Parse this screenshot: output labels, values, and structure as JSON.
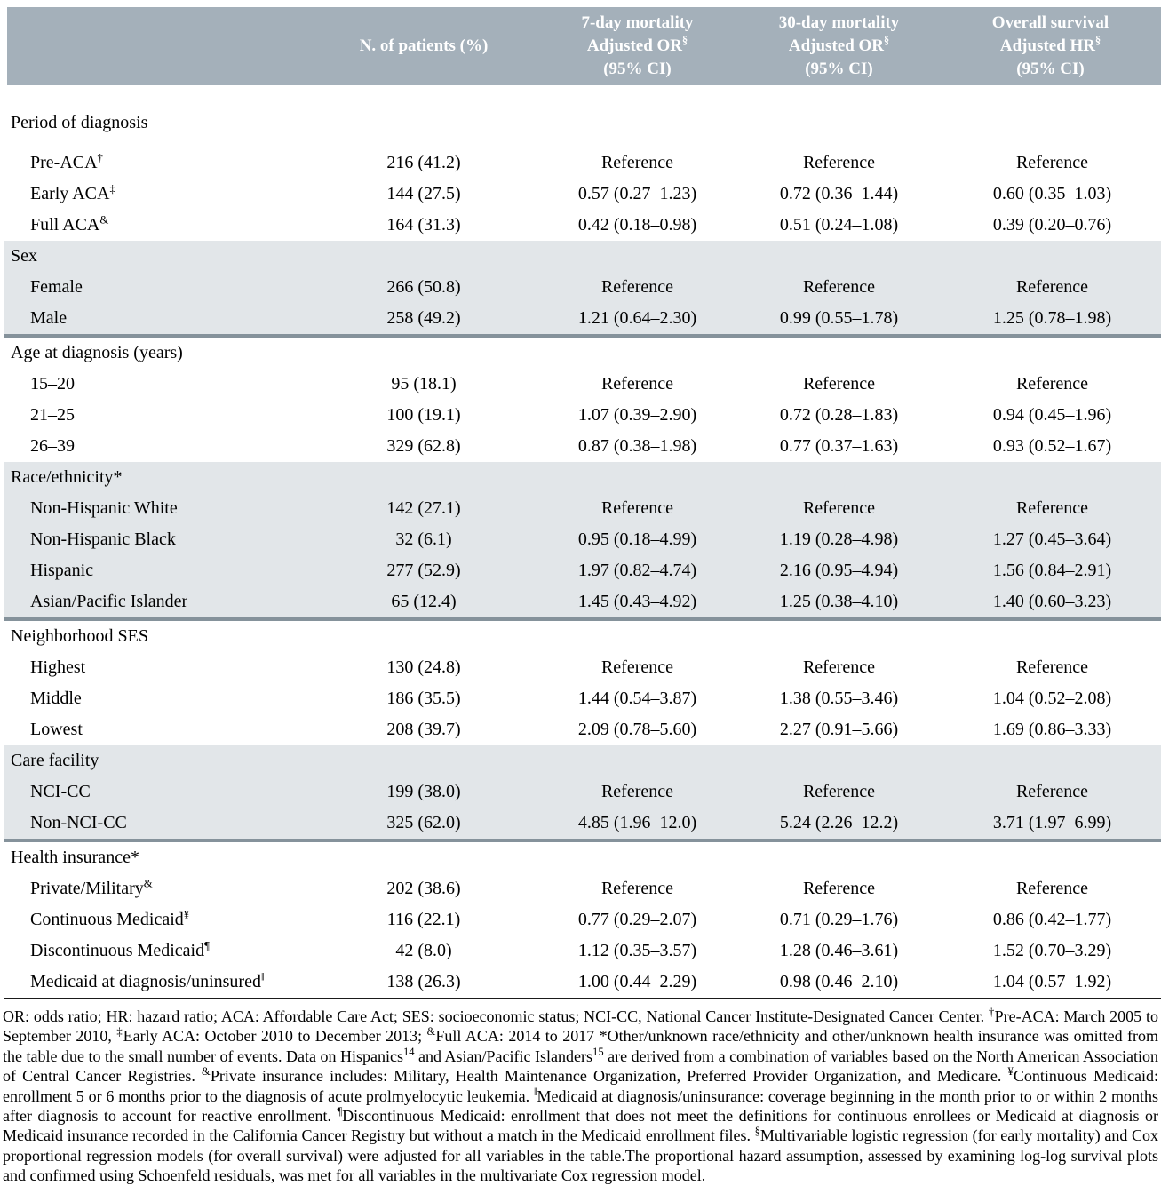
{
  "table": {
    "columns": [
      {
        "label": ""
      },
      {
        "label": "N. of patients (%)"
      },
      {
        "line1": "7-day mortality",
        "line2": "Adjusted OR",
        "sup": "§",
        "line3": "(95% CI)"
      },
      {
        "line1": "30-day mortality",
        "line2": "Adjusted OR",
        "sup": "§",
        "line3": "(95% CI)"
      },
      {
        "line1": "Overall survival",
        "line2": "Adjusted HR",
        "sup": "§",
        "line3": "(95% CI)"
      }
    ],
    "sections": [
      {
        "title": "Period of diagnosis",
        "shaded": false,
        "rows": [
          {
            "label": "Pre-ACA",
            "sup": "†",
            "n": "216 (41.2)",
            "or7": "Reference",
            "or30": "Reference",
            "hr": "Reference"
          },
          {
            "label": "Early ACA",
            "sup": "‡",
            "n": "144 (27.5)",
            "or7": "0.57 (0.27–1.23)",
            "or30": "0.72 (0.36–1.44)",
            "hr": "0.60 (0.35–1.03)"
          },
          {
            "label": "Full ACA",
            "sup": "&",
            "n": "164 (31.3)",
            "or7": "0.42 (0.18–0.98)",
            "or30": "0.51 (0.24–1.08)",
            "hr": "0.39 (0.20–0.76)"
          }
        ]
      },
      {
        "title": "Sex",
        "shaded": true,
        "rows": [
          {
            "label": "Female",
            "sup": "",
            "n": "266 (50.8)",
            "or7": "Reference",
            "or30": "Reference",
            "hr": "Reference"
          },
          {
            "label": "Male",
            "sup": "",
            "n": "258 (49.2)",
            "or7": "1.21 (0.64–2.30)",
            "or30": "0.99 (0.55–1.78)",
            "hr": "1.25 (0.78–1.98)"
          }
        ]
      },
      {
        "title": "Age at diagnosis (years)",
        "shaded": false,
        "rows": [
          {
            "label": "15–20",
            "sup": "",
            "n": "95 (18.1)",
            "or7": "Reference",
            "or30": "Reference",
            "hr": "Reference"
          },
          {
            "label": "21–25",
            "sup": "",
            "n": "100 (19.1)",
            "or7": "1.07 (0.39–2.90)",
            "or30": "0.72 (0.28–1.83)",
            "hr": "0.94 (0.45–1.96)"
          },
          {
            "label": "26–39",
            "sup": "",
            "n": "329 (62.8)",
            "or7": "0.87 (0.38–1.98)",
            "or30": "0.77 (0.37–1.63)",
            "hr": "0.93 (0.52–1.67)"
          }
        ]
      },
      {
        "title": "Race/ethnicity*",
        "shaded": true,
        "rows": [
          {
            "label": "Non-Hispanic White",
            "sup": "",
            "n": "142 (27.1)",
            "or7": "Reference",
            "or30": "Reference",
            "hr": "Reference"
          },
          {
            "label": "Non-Hispanic Black",
            "sup": "",
            "n": "32 (6.1)",
            "or7": "0.95 (0.18–4.99)",
            "or30": "1.19 (0.28–4.98)",
            "hr": "1.27 (0.45–3.64)"
          },
          {
            "label": "Hispanic",
            "sup": "",
            "n": "277 (52.9)",
            "or7": "1.97 (0.82–4.74)",
            "or30": "2.16 (0.95–4.94)",
            "hr": "1.56 (0.84–2.91)"
          },
          {
            "label": "Asian/Pacific Islander",
            "sup": "",
            "n": "65 (12.4)",
            "or7": "1.45 (0.43–4.92)",
            "or30": "1.25 (0.38–4.10)",
            "hr": "1.40 (0.60–3.23)"
          }
        ]
      },
      {
        "title": "Neighborhood SES",
        "shaded": false,
        "rows": [
          {
            "label": "Highest",
            "sup": "",
            "n": "130 (24.8)",
            "or7": "Reference",
            "or30": "Reference",
            "hr": "Reference"
          },
          {
            "label": "Middle",
            "sup": "",
            "n": "186 (35.5)",
            "or7": "1.44 (0.54–3.87)",
            "or30": "1.38 (0.55–3.46)",
            "hr": "1.04 (0.52–2.08)"
          },
          {
            "label": "Lowest",
            "sup": "",
            "n": "208 (39.7)",
            "or7": "2.09 (0.78–5.60)",
            "or30": "2.27 (0.91–5.66)",
            "hr": "1.69 (0.86–3.33)"
          }
        ]
      },
      {
        "title": "Care facility",
        "shaded": true,
        "rows": [
          {
            "label": "NCI-CC",
            "sup": "",
            "n": "199 (38.0)",
            "or7": "Reference",
            "or30": "Reference",
            "hr": "Reference"
          },
          {
            "label": "Non-NCI-CC",
            "sup": "",
            "n": "325 (62.0)",
            "or7": "4.85 (1.96–12.0)",
            "or30": "5.24 (2.26–12.2)",
            "hr": "3.71 (1.97–6.99)"
          }
        ]
      },
      {
        "title": "Health insurance*",
        "shaded": false,
        "rows": [
          {
            "label": "Private/Military",
            "sup": "&",
            "n": "202 (38.6)",
            "or7": "Reference",
            "or30": "Reference",
            "hr": "Reference"
          },
          {
            "label": "Continuous Medicaid",
            "sup": "¥",
            "n": "116 (22.1)",
            "or7": "0.77 (0.29–2.07)",
            "or30": "0.71 (0.29–1.76)",
            "hr": "0.86 (0.42–1.77)"
          },
          {
            "label": "Discontinuous Medicaid",
            "sup": "¶",
            "n": "42 (8.0)",
            "or7": "1.12 (0.35–3.57)",
            "or30": "1.28 (0.46–3.61)",
            "hr": "1.52 (0.70–3.29)"
          },
          {
            "label": "Medicaid at diagnosis/uninsured",
            "sup": "‖",
            "n": "138 (26.3)",
            "or7": "1.00 (0.44–2.29)",
            "or30": "0.98 (0.46–2.10)",
            "hr": "1.04 (0.57–1.92)"
          }
        ]
      }
    ]
  },
  "footnote": {
    "segments": [
      {
        "sup": "",
        "text": "OR: odds ratio; HR: hazard ratio; ACA: Affordable Care Act; SES: socioeconomic status; NCI-CC, National Cancer Institute-Designated Cancer Center. "
      },
      {
        "sup": "†",
        "text": "Pre-ACA: March 2005 to September 2010, "
      },
      {
        "sup": "‡",
        "text": "Early ACA: October 2010 to December 2013; "
      },
      {
        "sup": "&",
        "text": "Full ACA: 2014 to 2017 *Other/unknown race/ethnicity and other/unknown health insurance was omitted from the table due to the small number of events. Data on Hispanics"
      },
      {
        "sup": "14",
        "text": " and Asian/Pacific Islanders"
      },
      {
        "sup": "15",
        "text": " are derived from a combination of variables based on the North American Association of Central Cancer Registries. "
      },
      {
        "sup": "&",
        "text": "Private insurance includes: Military, Health Maintenance Organization, Preferred Provider Organization, and Medicare. "
      },
      {
        "sup": "¥",
        "text": "Continuous Medicaid: enrollment 5 or 6 months prior to the diagnosis of acute prolmyelocytic leukemia. "
      },
      {
        "sup": "‖",
        "text": "Medicaid at diagnosis/uninsurance: coverage beginning in the month prior to or within 2 months after diagnosis to account for reactive enrollment. "
      },
      {
        "sup": "¶",
        "text": "Discontinuous Medicaid: enrollment that does not meet the definitions for continuous enrollees or Medicaid at diagnosis or Medicaid insurance recorded in the California Cancer Registry but without a match in the Medicaid enrollment files. "
      },
      {
        "sup": "§",
        "text": "Multivariable logistic regression (for early mortality) and Cox proportional regression models (for overall survival) were adjusted for all variables in the table.The proportional hazard assumption, assessed by examining log-log survival plots and confirmed using Schoenfeld residuals, was met for all variables in the multivariate Cox regression model."
      }
    ]
  },
  "colors": {
    "header_bg": "#a4b0ba",
    "band_bg": "#e2e6e9",
    "divider": "#85929b"
  }
}
